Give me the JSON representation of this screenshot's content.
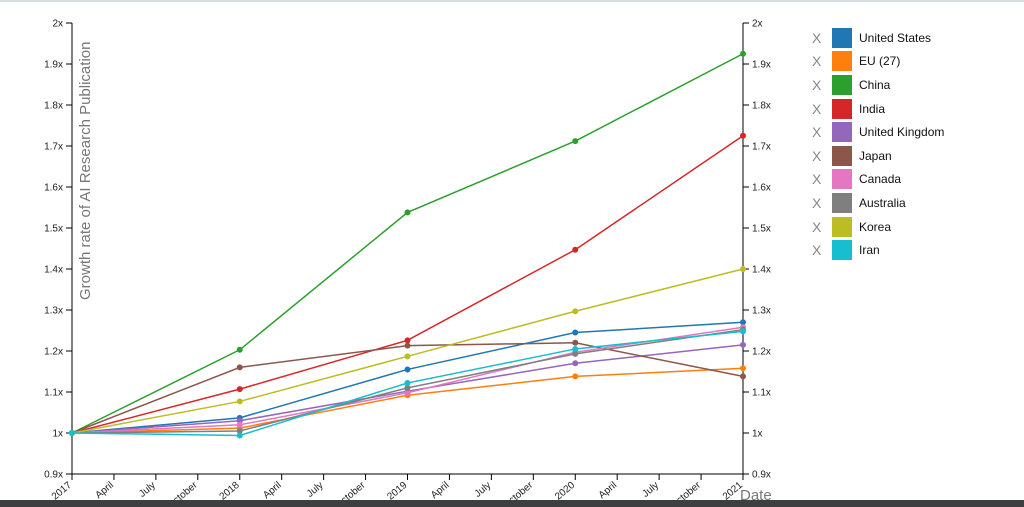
{
  "chart_data": {
    "type": "line",
    "ylabel": "Growth rate of AI Research Publication",
    "xlabel": "Date",
    "ylim": [
      0.9,
      2.0
    ],
    "y_ticks": [
      "0.9x",
      "1x",
      "1.1x",
      "1.2x",
      "1.3x",
      "1.4x",
      "1.5x",
      "1.6x",
      "1.7x",
      "1.8x",
      "1.9x",
      "2x"
    ],
    "x_ticks": [
      "2017",
      "April",
      "July",
      "October",
      "2018",
      "April",
      "July",
      "October",
      "2019",
      "April",
      "July",
      "October",
      "2020",
      "April",
      "July",
      "October",
      "2021"
    ],
    "x": [
      "2017",
      "2018",
      "2019",
      "2020",
      "2021"
    ],
    "series": [
      {
        "name": "United States",
        "color": "#1f77b4",
        "values": [
          1.0,
          1.037,
          1.155,
          1.245,
          1.27
        ]
      },
      {
        "name": "EU (27)",
        "color": "#ff7f0e",
        "values": [
          1.0,
          1.012,
          1.092,
          1.138,
          1.158
        ]
      },
      {
        "name": "China",
        "color": "#2ca02c",
        "values": [
          1.0,
          1.203,
          1.538,
          1.712,
          1.925
        ]
      },
      {
        "name": "India",
        "color": "#d62728",
        "values": [
          1.0,
          1.107,
          1.226,
          1.447,
          1.725
        ]
      },
      {
        "name": "United Kingdom",
        "color": "#9467bd",
        "values": [
          1.0,
          1.03,
          1.102,
          1.17,
          1.215
        ]
      },
      {
        "name": "Japan",
        "color": "#8c564b",
        "values": [
          1.0,
          1.16,
          1.213,
          1.22,
          1.138
        ]
      },
      {
        "name": "Canada",
        "color": "#e377c2",
        "values": [
          1.0,
          1.02,
          1.098,
          1.197,
          1.258
        ]
      },
      {
        "name": "Australia",
        "color": "#7f7f7f",
        "values": [
          1.0,
          1.005,
          1.11,
          1.193,
          1.252
        ]
      },
      {
        "name": "Korea",
        "color": "#bcbd22",
        "values": [
          1.0,
          1.077,
          1.187,
          1.297,
          1.4
        ]
      },
      {
        "name": "Iran",
        "color": "#17becf",
        "values": [
          1.0,
          0.994,
          1.122,
          1.205,
          1.248
        ]
      }
    ]
  },
  "legend": {
    "remove_label": "X",
    "items": [
      {
        "label": "United States",
        "color": "#1f77b4"
      },
      {
        "label": "EU (27)",
        "color": "#ff7f0e"
      },
      {
        "label": "China",
        "color": "#2ca02c"
      },
      {
        "label": "India",
        "color": "#d62728"
      },
      {
        "label": "United Kingdom",
        "color": "#9467bd"
      },
      {
        "label": "Japan",
        "color": "#8c564b"
      },
      {
        "label": "Canada",
        "color": "#e377c2"
      },
      {
        "label": "Australia",
        "color": "#7f7f7f"
      },
      {
        "label": "Korea",
        "color": "#bcbd22"
      },
      {
        "label": "Iran",
        "color": "#17becf"
      }
    ]
  }
}
